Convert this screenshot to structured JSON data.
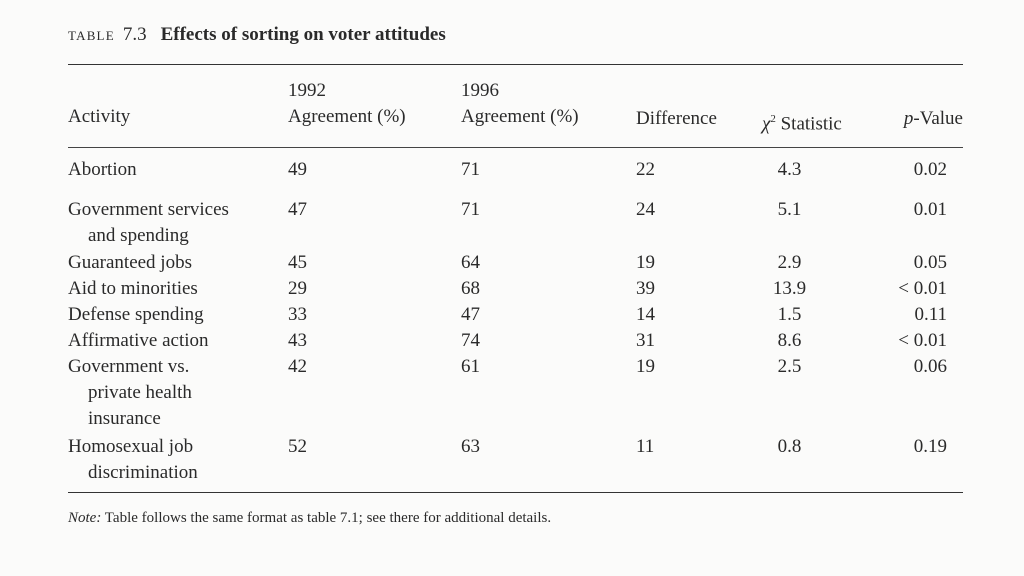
{
  "caption": {
    "label": "TABLE",
    "number": "7.3",
    "title": "Effects of sorting on voter attitudes"
  },
  "header": {
    "activity": "Activity",
    "y1992_line1": "1992",
    "y1992_line2": "Agreement (%)",
    "y1996_line1": "1996",
    "y1996_line2": "Agreement (%)",
    "difference": "Difference",
    "chi_symbol": "χ",
    "chi_exp": "2",
    "chi_rest": " Statistic",
    "p_italic": "p",
    "p_rest": "-Value"
  },
  "rows": [
    {
      "activity": [
        "Abortion"
      ],
      "y1992": "49",
      "y1996": "71",
      "diff": "22",
      "chi": "4.3",
      "p": "0.02"
    },
    {
      "activity": [
        "Government services",
        "and spending"
      ],
      "y1992": "47",
      "y1996": "71",
      "diff": "24",
      "chi": "5.1",
      "p": "0.01"
    },
    {
      "activity": [
        "Guaranteed jobs"
      ],
      "y1992": "45",
      "y1996": "64",
      "diff": "19",
      "chi": "2.9",
      "p": "0.05"
    },
    {
      "activity": [
        "Aid to minorities"
      ],
      "y1992": "29",
      "y1996": "68",
      "diff": "39",
      "chi": "13.9",
      "p": "< 0.01"
    },
    {
      "activity": [
        "Defense spending"
      ],
      "y1992": "33",
      "y1996": "47",
      "diff": "14",
      "chi": "1.5",
      "p": "0.11"
    },
    {
      "activity": [
        "Affirmative action"
      ],
      "y1992": "43",
      "y1996": "74",
      "diff": "31",
      "chi": "8.6",
      "p": "< 0.01"
    },
    {
      "activity": [
        "Government vs.",
        "private health",
        "insurance"
      ],
      "y1992": "42",
      "y1996": "61",
      "diff": "19",
      "chi": "2.5",
      "p": "0.06"
    },
    {
      "activity": [
        "Homosexual job",
        "discrimination"
      ],
      "y1992": "52",
      "y1996": "63",
      "diff": "11",
      "chi": "0.8",
      "p": "0.19"
    }
  ],
  "note": {
    "label": "Note:",
    "text": " Table follows the same format as table 7.1; see there for additional details."
  }
}
